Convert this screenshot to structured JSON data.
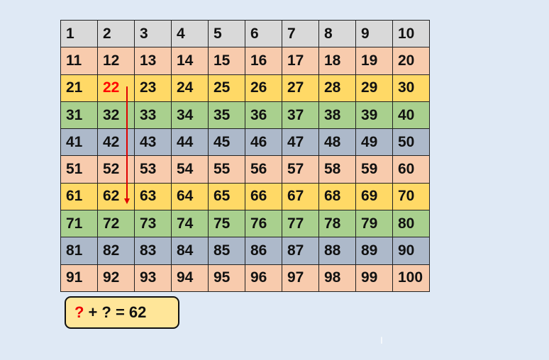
{
  "grid": {
    "numbers": [
      1,
      2,
      3,
      4,
      5,
      6,
      7,
      8,
      9,
      10,
      11,
      12,
      13,
      14,
      15,
      16,
      17,
      18,
      19,
      20,
      21,
      22,
      23,
      24,
      25,
      26,
      27,
      28,
      29,
      30,
      31,
      32,
      33,
      34,
      35,
      36,
      37,
      38,
      39,
      40,
      41,
      42,
      43,
      44,
      45,
      46,
      47,
      48,
      49,
      50,
      51,
      52,
      53,
      54,
      55,
      56,
      57,
      58,
      59,
      60,
      61,
      62,
      63,
      64,
      65,
      66,
      67,
      68,
      69,
      70,
      71,
      72,
      73,
      74,
      75,
      76,
      77,
      78,
      79,
      80,
      81,
      82,
      83,
      84,
      85,
      86,
      87,
      88,
      89,
      90,
      91,
      92,
      93,
      94,
      95,
      96,
      97,
      98,
      99,
      100
    ],
    "row_colors": [
      "#d9d9d9",
      "#f8cbad",
      "#ffd966",
      "#a9d08e",
      "#adb9ca",
      "#f8cbad",
      "#ffd966",
      "#a9d08e",
      "#adb9ca",
      "#f8cbad"
    ],
    "highlighted": 22,
    "highlight_color": "#ff0000",
    "arrow": {
      "from": 22,
      "to": 62,
      "color": "#e00000"
    }
  },
  "equation": {
    "unknown1": "?",
    "rest": "+ ? = 62"
  }
}
